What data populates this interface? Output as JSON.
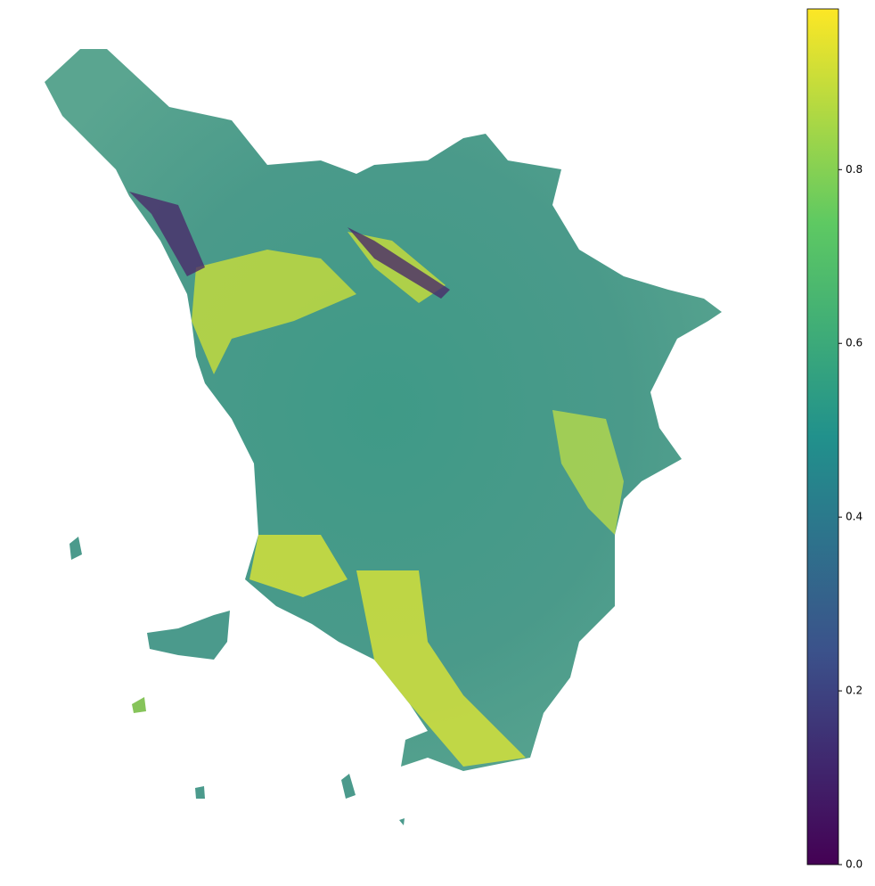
{
  "colorbar": {
    "clim": [
      0,
      0.985
    ],
    "ticks": [
      {
        "value": 0,
        "label": "0.0"
      },
      0.2,
      0.4,
      0.6,
      0.8
    ],
    "colors": [
      "#440154",
      "#3b528b",
      "#21918c",
      "#5ec962",
      "#fde725"
    ]
  }
}
